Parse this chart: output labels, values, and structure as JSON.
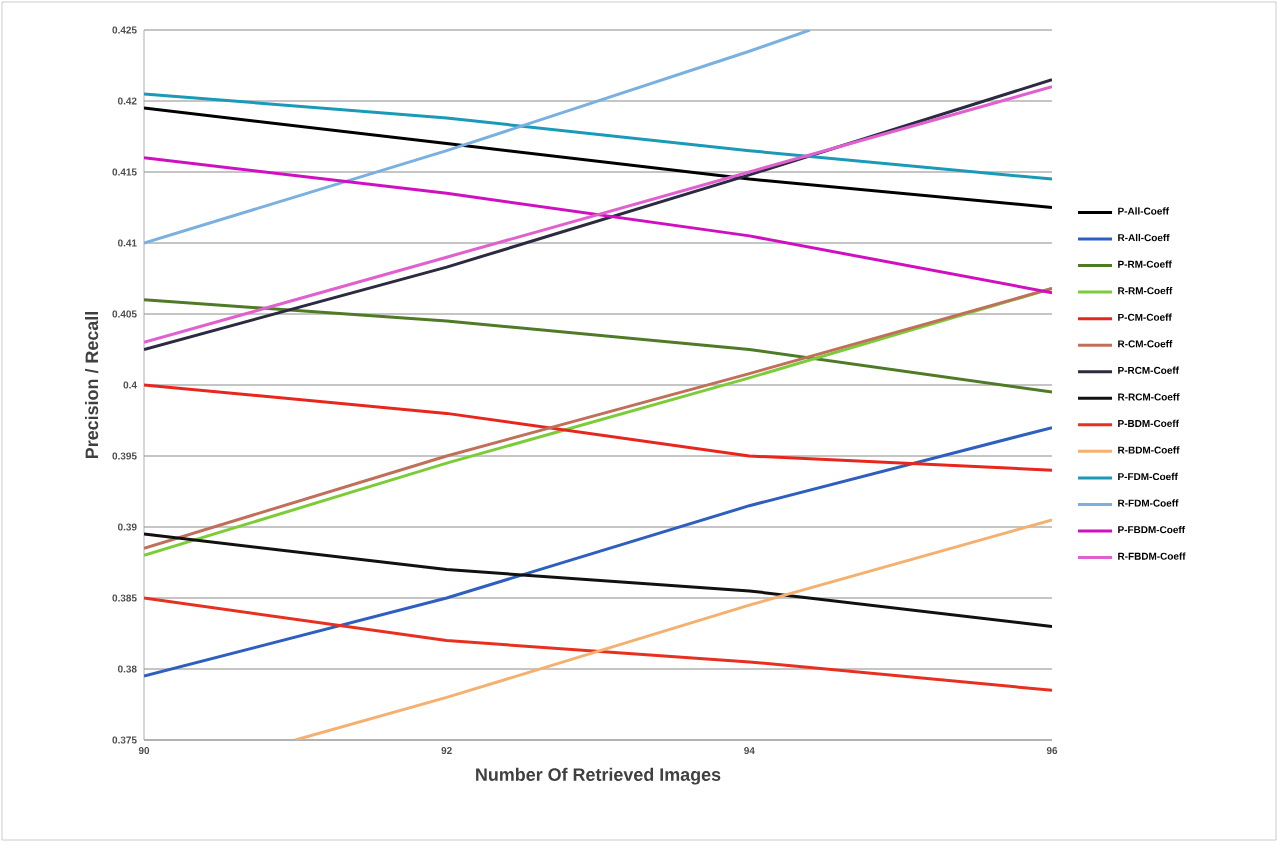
{
  "chart_data": {
    "type": "line",
    "xlabel": "Number Of Retrieved Images",
    "ylabel": "Precision / Recall",
    "x": [
      90,
      92,
      94,
      96
    ],
    "xlim": [
      90,
      96
    ],
    "xticks": [
      90,
      92,
      94,
      96
    ],
    "ylim": [
      0.375,
      0.425
    ],
    "yticks": [
      0.375,
      0.38,
      0.385,
      0.39,
      0.395,
      0.4,
      0.405,
      0.41,
      0.415,
      0.42,
      0.425
    ],
    "grid": "y",
    "legend": "right",
    "marker": "none",
    "line_style": "solid",
    "series": [
      {
        "name": "P-All-Coeff",
        "color": "#000000",
        "values": [
          0.4195,
          0.417,
          0.4145,
          0.4125
        ]
      },
      {
        "name": "R-All-Coeff",
        "color": "#2e5fbf",
        "values": [
          0.3795,
          0.385,
          0.3915,
          0.397
        ]
      },
      {
        "name": "P-RM-Coeff",
        "color": "#4f7a28",
        "values": [
          0.406,
          0.4045,
          0.4025,
          0.3995
        ]
      },
      {
        "name": "R-RM-Coeff",
        "color": "#7ccc3a",
        "values": [
          0.388,
          0.3945,
          0.4005,
          0.4068
        ]
      },
      {
        "name": "P-CM-Coeff",
        "color": "#e8261d",
        "values": [
          0.4,
          0.398,
          0.395,
          0.394
        ]
      },
      {
        "name": "R-CM-Coeff",
        "color": "#c0705a",
        "values": [
          0.3885,
          0.395,
          0.4008,
          0.4068
        ]
      },
      {
        "name": "P-RCM-Coeff",
        "color": "#2a2a40",
        "values": [
          0.4025,
          0.4083,
          0.4148,
          0.4215
        ]
      },
      {
        "name": "R-RCM-Coeff",
        "color": "#111111",
        "values": [
          0.3895,
          0.387,
          0.3855,
          0.383
        ]
      },
      {
        "name": "P-BDM-Coeff",
        "color": "#e83020",
        "values": [
          0.385,
          0.382,
          0.3805,
          0.3785
        ]
      },
      {
        "name": "R-BDM-Coeff",
        "color": "#f5b070",
        "x": [
          91,
          92,
          94,
          96
        ],
        "values": [
          0.375,
          0.378,
          0.3845,
          0.3905
        ]
      },
      {
        "name": "P-FDM-Coeff",
        "color": "#1a9ab8",
        "values": [
          0.4205,
          0.4188,
          0.4165,
          0.4145
        ]
      },
      {
        "name": "R-FDM-Coeff",
        "color": "#7ab0e0",
        "x": [
          90,
          92,
          94,
          94.4
        ],
        "values": [
          0.41,
          0.4165,
          0.4235,
          0.425
        ]
      },
      {
        "name": "P-FBDM-Coeff",
        "color": "#d010c0",
        "values": [
          0.416,
          0.4135,
          0.4105,
          0.4065
        ]
      },
      {
        "name": "R-FBDM-Coeff",
        "color": "#e060d0",
        "values": [
          0.403,
          0.409,
          0.415,
          0.421
        ]
      }
    ]
  }
}
